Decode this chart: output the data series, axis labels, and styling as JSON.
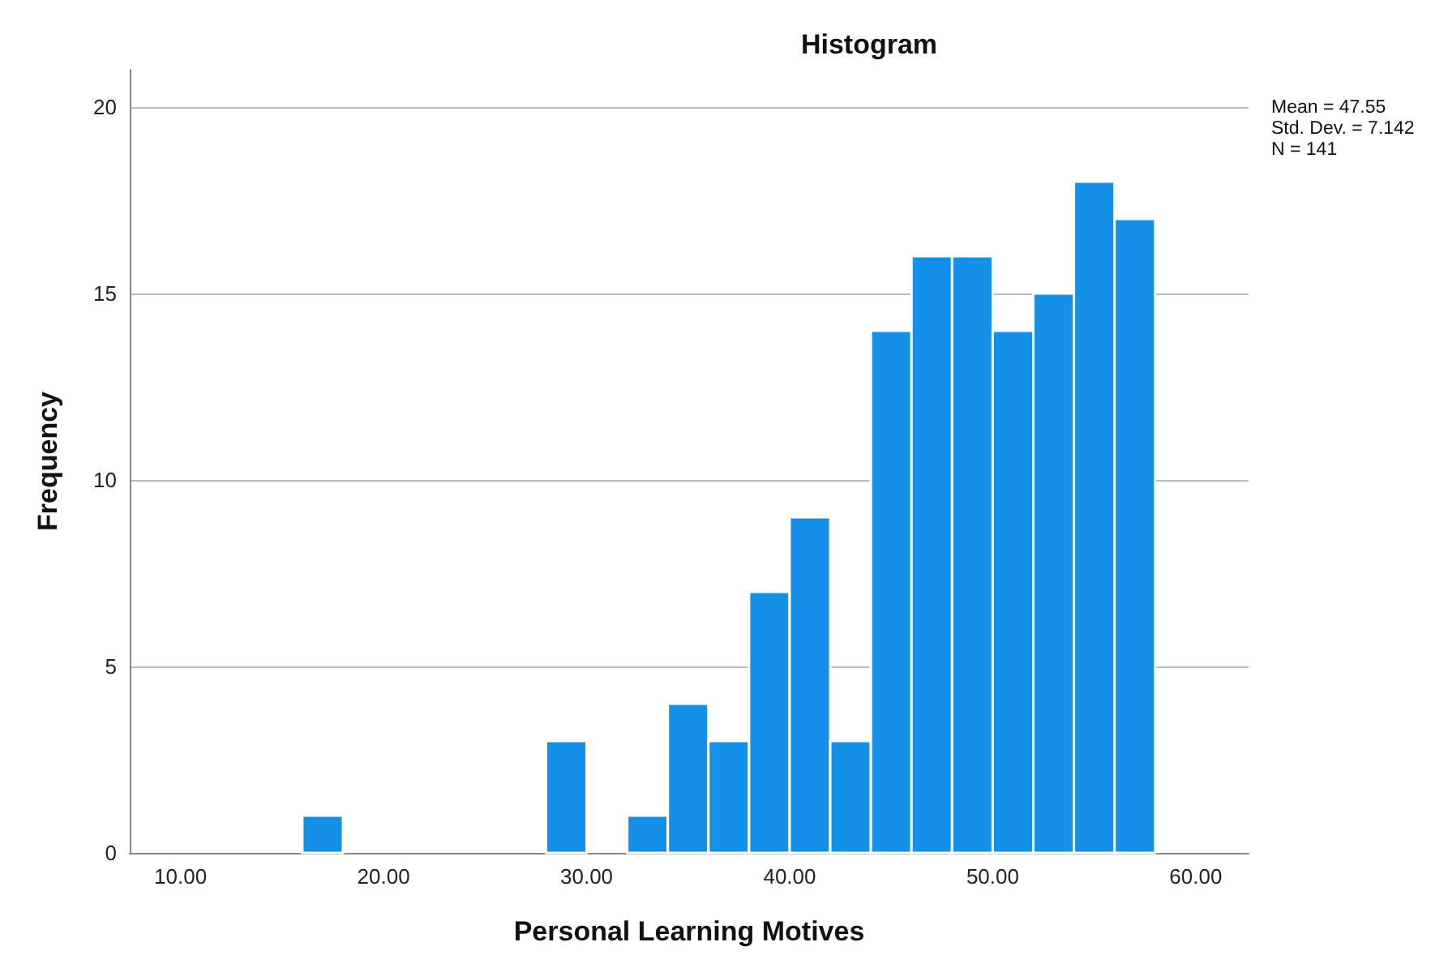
{
  "chart_data": {
    "type": "histogram",
    "title": "Histogram",
    "xlabel": "Personal Learning Motives",
    "ylabel": "Frequency",
    "bins": [
      16,
      18,
      20,
      22,
      24,
      26,
      28,
      30,
      32,
      34,
      36,
      38,
      40,
      42,
      44,
      46,
      48,
      50,
      52,
      54,
      56,
      58
    ],
    "values": [
      1,
      0,
      0,
      0,
      0,
      0,
      3,
      0,
      1,
      4,
      3,
      7,
      9,
      3,
      14,
      16,
      16,
      14,
      15,
      18,
      17
    ],
    "color": "#1490e8",
    "xlim": [
      7.5,
      62.6
    ],
    "xticks": [
      {
        "value": 10,
        "label": "10.00"
      },
      {
        "value": 20,
        "label": "20.00"
      },
      {
        "value": 30,
        "label": "30.00"
      },
      {
        "value": 40,
        "label": "40.00"
      },
      {
        "value": 50,
        "label": "50.00"
      },
      {
        "value": 60,
        "label": "60.00"
      }
    ],
    "ylim": [
      0,
      21
    ],
    "yticks": [
      0,
      5,
      10,
      15,
      20
    ],
    "grid": "y",
    "annotations": [
      "Mean = 47.55",
      "Std. Dev. = 7.142",
      "N = 141"
    ]
  }
}
